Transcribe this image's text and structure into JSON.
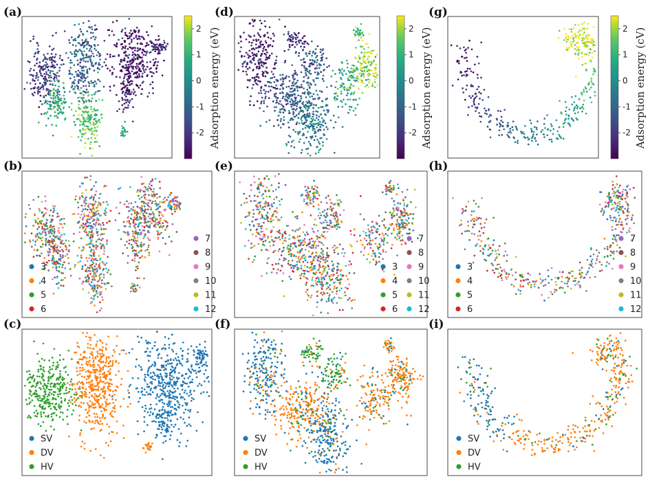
{
  "chart_data": [
    {
      "panel": "(a)",
      "type": "scatter",
      "color_by": "adsorption_energy",
      "colorbar": {
        "label": "Adsorption energy (eV)",
        "range": [
          -3,
          2.5
        ],
        "ticks": [
          "2",
          "1",
          "0",
          "-1",
          "-2"
        ],
        "tick_values": [
          2,
          1,
          0,
          -1,
          -2
        ],
        "colormap": "viridis"
      }
    },
    {
      "panel": "(d)",
      "type": "scatter",
      "color_by": "adsorption_energy",
      "colorbar": {
        "label": "Adsorption energy (eV)",
        "range": [
          -3,
          2.5
        ],
        "ticks": [
          "2",
          "1",
          "0",
          "-1",
          "-2"
        ],
        "tick_values": [
          2,
          1,
          0,
          -1,
          -2
        ],
        "colormap": "viridis"
      }
    },
    {
      "panel": "(g)",
      "type": "scatter",
      "color_by": "adsorption_energy",
      "colorbar": {
        "label": "Adsorption energy (cV)",
        "range": [
          -3,
          2.5
        ],
        "ticks": [
          "2",
          "1",
          "0",
          "-1",
          "-2"
        ],
        "tick_values": [
          2,
          1,
          0,
          -1,
          -2
        ],
        "colormap": "viridis"
      }
    },
    {
      "panel": "(b)",
      "type": "scatter",
      "color_by": "category",
      "legend": [
        {
          "label": "3",
          "color": "#1f77b4"
        },
        {
          "label": "4",
          "color": "#ff7f0e"
        },
        {
          "label": "5",
          "color": "#2ca02c"
        },
        {
          "label": "6",
          "color": "#d62728"
        },
        {
          "label": "7",
          "color": "#9467bd"
        },
        {
          "label": "8",
          "color": "#8c564b"
        },
        {
          "label": "9",
          "color": "#e377c2"
        },
        {
          "label": "10",
          "color": "#7f7f7f"
        },
        {
          "label": "11",
          "color": "#bcbd22"
        },
        {
          "label": "12",
          "color": "#17becf"
        }
      ]
    },
    {
      "panel": "(e)",
      "type": "scatter",
      "color_by": "category",
      "legend": [
        {
          "label": "3",
          "color": "#1f77b4"
        },
        {
          "label": "4",
          "color": "#ff7f0e"
        },
        {
          "label": "5",
          "color": "#2ca02c"
        },
        {
          "label": "6",
          "color": "#d62728"
        },
        {
          "label": "7",
          "color": "#9467bd"
        },
        {
          "label": "8",
          "color": "#8c564b"
        },
        {
          "label": "9",
          "color": "#e377c2"
        },
        {
          "label": "10",
          "color": "#7f7f7f"
        },
        {
          "label": "11",
          "color": "#bcbd22"
        },
        {
          "label": "12",
          "color": "#17becf"
        }
      ]
    },
    {
      "panel": "(h)",
      "type": "scatter",
      "color_by": "category",
      "legend": [
        {
          "label": "3",
          "color": "#1f77b4"
        },
        {
          "label": "4",
          "color": "#ff7f0e"
        },
        {
          "label": "5",
          "color": "#2ca02c"
        },
        {
          "label": "6",
          "color": "#d62728"
        },
        {
          "label": "7",
          "color": "#9467bd"
        },
        {
          "label": "8",
          "color": "#8c564b"
        },
        {
          "label": "9",
          "color": "#e377c2"
        },
        {
          "label": "10",
          "color": "#7f7f7f"
        },
        {
          "label": "11",
          "color": "#bcbd22"
        },
        {
          "label": "12",
          "color": "#17becf"
        }
      ]
    },
    {
      "panel": "(c)",
      "type": "scatter",
      "color_by": "defect_type",
      "legend": [
        {
          "label": "SV",
          "color": "#1f77b4"
        },
        {
          "label": "DV",
          "color": "#ff7f0e"
        },
        {
          "label": "HV",
          "color": "#2ca02c"
        }
      ]
    },
    {
      "panel": "(f)",
      "type": "scatter",
      "color_by": "defect_type",
      "legend": [
        {
          "label": "SV",
          "color": "#1f77b4"
        },
        {
          "label": "DV",
          "color": "#ff7f0e"
        },
        {
          "label": "HV",
          "color": "#2ca02c"
        }
      ]
    },
    {
      "panel": "(i)",
      "type": "scatter",
      "color_by": "defect_type",
      "legend": [
        {
          "label": "SV",
          "color": "#1f77b4"
        },
        {
          "label": "DV",
          "color": "#ff7f0e"
        },
        {
          "label": "HV",
          "color": "#2ca02c"
        }
      ]
    }
  ]
}
